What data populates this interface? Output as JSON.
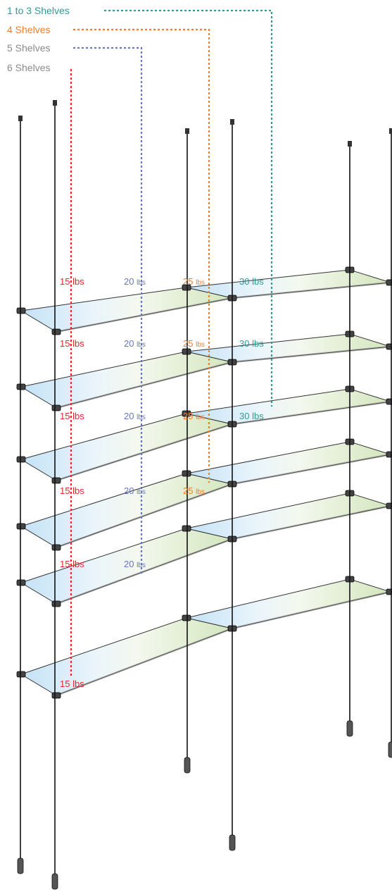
{
  "colors": {
    "tier1": "#2a9d94",
    "tier2": "#f07d2e",
    "tier3": "#6b78b8",
    "tier4": "#e8262c",
    "legend_gray": "#8a8a8a",
    "cable": "#111111",
    "glass_blue": "#b8dcf4",
    "glass_green": "#d9e9c2"
  },
  "legend": [
    {
      "label": "1 to 3 Shelves",
      "color_key": "tier1"
    },
    {
      "label": "4 Shelves",
      "color_key": "tier2"
    },
    {
      "label": "5 Shelves",
      "color_key": "tier3"
    },
    {
      "label": "6 Shelves",
      "color_key": "tier4"
    }
  ],
  "rows": [
    {
      "labels": [
        {
          "num": "15",
          "unit": "lbs",
          "color_key": "tier4"
        },
        {
          "num": "20",
          "unit": "lbs",
          "color_key": "tier3"
        },
        {
          "num": "25",
          "unit": "lbs",
          "color_key": "tier2"
        },
        {
          "num": "30",
          "unit": "lbs",
          "color_key": "tier1"
        }
      ]
    },
    {
      "labels": [
        {
          "num": "15",
          "unit": "lbs",
          "color_key": "tier4"
        },
        {
          "num": "20",
          "unit": "lbs",
          "color_key": "tier3"
        },
        {
          "num": "25",
          "unit": "lbs",
          "color_key": "tier2"
        },
        {
          "num": "30",
          "unit": "lbs",
          "color_key": "tier1"
        }
      ]
    },
    {
      "labels": [
        {
          "num": "15",
          "unit": "lbs",
          "color_key": "tier4"
        },
        {
          "num": "20",
          "unit": "lbs",
          "color_key": "tier3"
        },
        {
          "num": "25",
          "unit": "lbs",
          "color_key": "tier2"
        },
        {
          "num": "30",
          "unit": "lbs",
          "color_key": "tier1"
        }
      ]
    },
    {
      "labels": [
        {
          "num": "15",
          "unit": "lbs",
          "color_key": "tier4"
        },
        {
          "num": "20",
          "unit": "lbs",
          "color_key": "tier3"
        },
        {
          "num": "25",
          "unit": "lbs",
          "color_key": "tier2"
        }
      ]
    },
    {
      "labels": [
        {
          "num": "15",
          "unit": "lbs",
          "color_key": "tier4"
        },
        {
          "num": "20",
          "unit": "lbs",
          "color_key": "tier3"
        }
      ]
    },
    {
      "labels": [
        {
          "num": "15",
          "unit": "lbs",
          "color_key": "tier4"
        }
      ]
    }
  ]
}
